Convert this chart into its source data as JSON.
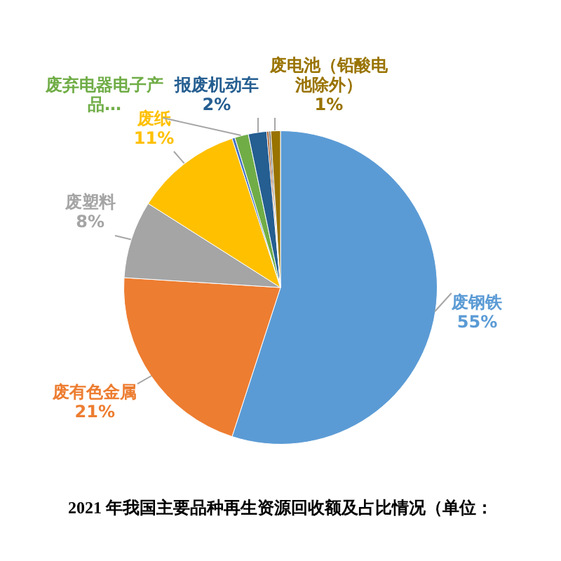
{
  "chart_data": {
    "type": "pie",
    "title": "2021 年我国主要品种再生资源回收额及占比情况（单位：",
    "categories": [
      "废钢铁",
      "废有色金属",
      "废塑料",
      "废纸",
      null,
      "废弃电器电子产品…",
      "报废机动车",
      null,
      null,
      "废电池（铅酸电池除外）"
    ],
    "values": [
      55,
      21,
      8,
      11,
      0.3,
      1.4,
      1.9,
      0.2,
      0.2,
      1
    ],
    "colors": [
      "#5b9bd5",
      "#ed7d31",
      "#a5a5a5",
      "#ffc000",
      "#4472c4",
      "#70ad47",
      "#255e91",
      "#9e480e",
      "#636363",
      "#997300"
    ],
    "value_labels": [
      "55%",
      "21%",
      "8%",
      "11%",
      null,
      null,
      "2%",
      null,
      null,
      "1%"
    ],
    "legend": false
  }
}
